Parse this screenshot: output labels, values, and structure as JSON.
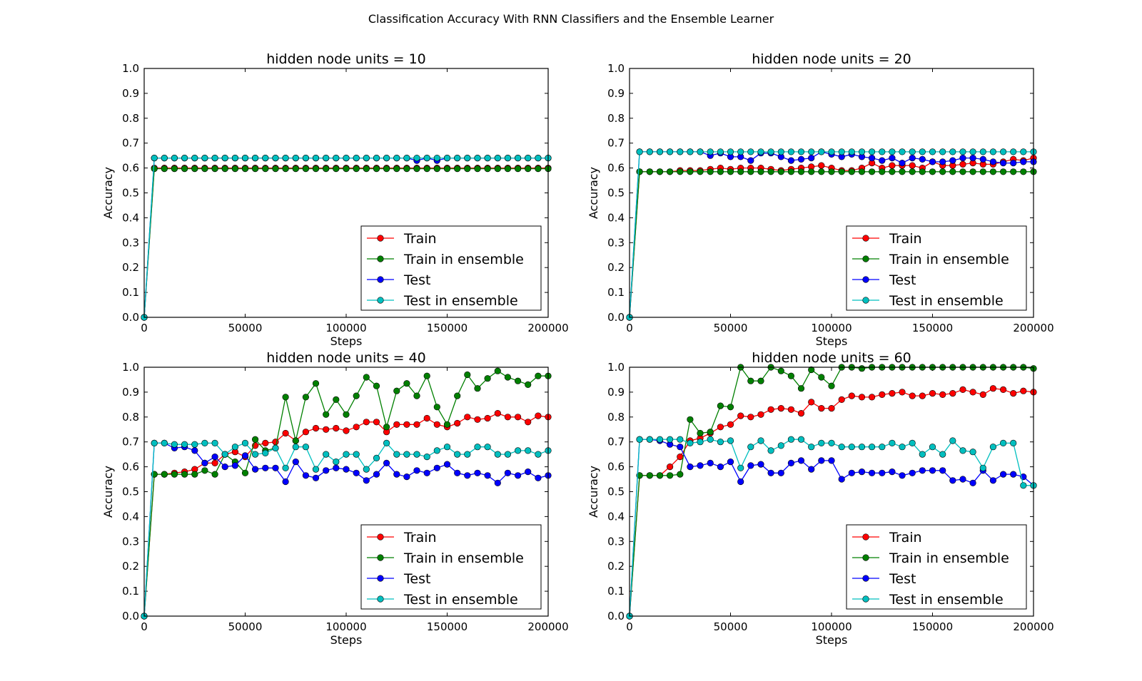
{
  "suptitle": "Classification Accuracy With RNN Classifiers and the Ensemble Learner",
  "chart_data": [
    {
      "type": "line",
      "title": "hidden node units = 10",
      "xlabel": "Steps",
      "ylabel": "Accuracy",
      "xlim": [
        0,
        200000
      ],
      "ylim": [
        0.0,
        1.0
      ],
      "x_ticks": [
        "0",
        "50000",
        "100000",
        "150000",
        "200000"
      ],
      "y_ticks": [
        "0.0",
        "0.1",
        "0.2",
        "0.3",
        "0.4",
        "0.5",
        "0.6",
        "0.7",
        "0.8",
        "0.9",
        "1.0"
      ],
      "legend_position": "lower right",
      "x_step": 5000,
      "series": [
        {
          "name": "Train",
          "color": "#ff0000",
          "values": [
            0,
            0.6,
            0.6,
            0.6,
            0.6,
            0.6,
            0.6,
            0.6,
            0.6,
            0.6,
            0.6,
            0.6,
            0.6,
            0.6,
            0.6,
            0.6,
            0.6,
            0.6,
            0.6,
            0.6,
            0.6,
            0.6,
            0.6,
            0.6,
            0.6,
            0.6,
            0.6,
            0.6,
            0.6,
            0.6,
            0.6,
            0.6,
            0.6,
            0.6,
            0.6,
            0.6,
            0.6,
            0.6,
            0.6,
            0.6,
            0.6
          ]
        },
        {
          "name": "Train in ensemble",
          "color": "#008000",
          "values": [
            0,
            0.597,
            0.597,
            0.597,
            0.597,
            0.597,
            0.597,
            0.597,
            0.597,
            0.597,
            0.597,
            0.597,
            0.597,
            0.597,
            0.597,
            0.597,
            0.597,
            0.597,
            0.597,
            0.597,
            0.597,
            0.597,
            0.597,
            0.597,
            0.597,
            0.597,
            0.597,
            0.597,
            0.597,
            0.597,
            0.597,
            0.597,
            0.597,
            0.597,
            0.597,
            0.597,
            0.597,
            0.597,
            0.597,
            0.597,
            0.597
          ]
        },
        {
          "name": "Test",
          "color": "#0000ff",
          "values": [
            0,
            0.64,
            0.64,
            0.64,
            0.64,
            0.64,
            0.64,
            0.64,
            0.64,
            0.64,
            0.64,
            0.64,
            0.64,
            0.64,
            0.64,
            0.64,
            0.64,
            0.64,
            0.64,
            0.64,
            0.64,
            0.64,
            0.64,
            0.64,
            0.64,
            0.64,
            0.64,
            0.63,
            0.64,
            0.63,
            0.64,
            0.64,
            0.64,
            0.64,
            0.64,
            0.64,
            0.64,
            0.64,
            0.64,
            0.64,
            0.64
          ]
        },
        {
          "name": "Test in ensemble",
          "color": "#00bfbf",
          "values": [
            0,
            0.64,
            0.64,
            0.64,
            0.64,
            0.64,
            0.64,
            0.64,
            0.64,
            0.64,
            0.64,
            0.64,
            0.64,
            0.64,
            0.64,
            0.64,
            0.64,
            0.64,
            0.64,
            0.64,
            0.64,
            0.64,
            0.64,
            0.64,
            0.64,
            0.64,
            0.64,
            0.64,
            0.64,
            0.64,
            0.64,
            0.64,
            0.64,
            0.64,
            0.64,
            0.64,
            0.64,
            0.64,
            0.64,
            0.64,
            0.64
          ]
        }
      ]
    },
    {
      "type": "line",
      "title": "hidden node units = 20",
      "xlabel": "Steps",
      "ylabel": "Accuracy",
      "xlim": [
        0,
        200000
      ],
      "ylim": [
        0.0,
        1.0
      ],
      "x_ticks": [
        "0",
        "50000",
        "100000",
        "150000",
        "200000"
      ],
      "y_ticks": [
        "0.0",
        "0.1",
        "0.2",
        "0.3",
        "0.4",
        "0.5",
        "0.6",
        "0.7",
        "0.8",
        "0.9",
        "1.0"
      ],
      "legend_position": "lower right",
      "x_step": 5000,
      "series": [
        {
          "name": "Train",
          "color": "#ff0000",
          "values": [
            0,
            0.585,
            0.585,
            0.585,
            0.585,
            0.59,
            0.59,
            0.59,
            0.595,
            0.6,
            0.595,
            0.6,
            0.6,
            0.6,
            0.595,
            0.59,
            0.595,
            0.6,
            0.605,
            0.61,
            0.6,
            0.59,
            0.59,
            0.6,
            0.62,
            0.6,
            0.61,
            0.61,
            0.61,
            0.6,
            0.625,
            0.61,
            0.61,
            0.615,
            0.62,
            0.615,
            0.615,
            0.625,
            0.635,
            0.63,
            0.64
          ]
        },
        {
          "name": "Train in ensemble",
          "color": "#008000",
          "values": [
            0,
            0.585,
            0.585,
            0.585,
            0.585,
            0.585,
            0.585,
            0.585,
            0.585,
            0.585,
            0.585,
            0.585,
            0.585,
            0.585,
            0.585,
            0.585,
            0.585,
            0.585,
            0.585,
            0.585,
            0.585,
            0.585,
            0.585,
            0.585,
            0.585,
            0.585,
            0.585,
            0.585,
            0.585,
            0.585,
            0.585,
            0.585,
            0.585,
            0.585,
            0.585,
            0.585,
            0.585,
            0.585,
            0.585,
            0.585,
            0.585
          ]
        },
        {
          "name": "Test",
          "color": "#0000ff",
          "values": [
            0,
            0.665,
            0.665,
            0.665,
            0.665,
            0.665,
            0.665,
            0.665,
            0.65,
            0.66,
            0.645,
            0.645,
            0.63,
            0.66,
            0.66,
            0.645,
            0.63,
            0.635,
            0.64,
            0.665,
            0.655,
            0.645,
            0.655,
            0.645,
            0.64,
            0.63,
            0.64,
            0.62,
            0.64,
            0.635,
            0.625,
            0.625,
            0.63,
            0.64,
            0.64,
            0.635,
            0.625,
            0.62,
            0.62,
            0.625,
            0.625
          ]
        },
        {
          "name": "Test in ensemble",
          "color": "#00bfbf",
          "values": [
            0,
            0.665,
            0.665,
            0.665,
            0.665,
            0.665,
            0.665,
            0.665,
            0.665,
            0.665,
            0.665,
            0.665,
            0.665,
            0.665,
            0.665,
            0.665,
            0.665,
            0.665,
            0.665,
            0.665,
            0.665,
            0.665,
            0.665,
            0.665,
            0.665,
            0.665,
            0.665,
            0.665,
            0.665,
            0.665,
            0.665,
            0.665,
            0.665,
            0.665,
            0.665,
            0.665,
            0.665,
            0.665,
            0.665,
            0.665,
            0.665
          ]
        }
      ]
    },
    {
      "type": "line",
      "title": "hidden node units = 40",
      "xlabel": "Steps",
      "ylabel": "Accuracy",
      "xlim": [
        0,
        200000
      ],
      "ylim": [
        0.0,
        1.0
      ],
      "x_ticks": [
        "0",
        "50000",
        "100000",
        "150000",
        "200000"
      ],
      "y_ticks": [
        "0.0",
        "0.1",
        "0.2",
        "0.3",
        "0.4",
        "0.5",
        "0.6",
        "0.7",
        "0.8",
        "0.9",
        "1.0"
      ],
      "legend_position": "lower right",
      "x_step": 5000,
      "series": [
        {
          "name": "Train",
          "color": "#ff0000",
          "values": [
            0,
            0.57,
            0.57,
            0.575,
            0.58,
            0.59,
            0.615,
            0.615,
            0.65,
            0.66,
            0.64,
            0.685,
            0.695,
            0.7,
            0.735,
            0.705,
            0.74,
            0.755,
            0.75,
            0.755,
            0.745,
            0.76,
            0.78,
            0.78,
            0.74,
            0.77,
            0.77,
            0.77,
            0.795,
            0.77,
            0.76,
            0.775,
            0.8,
            0.79,
            0.795,
            0.815,
            0.8,
            0.8,
            0.78,
            0.805,
            0.8
          ]
        },
        {
          "name": "Train in ensemble",
          "color": "#008000",
          "values": [
            0,
            0.57,
            0.57,
            0.57,
            0.57,
            0.57,
            0.585,
            0.57,
            0.65,
            0.62,
            0.575,
            0.71,
            0.665,
            0.675,
            0.88,
            0.705,
            0.88,
            0.935,
            0.81,
            0.87,
            0.81,
            0.885,
            0.96,
            0.925,
            0.76,
            0.905,
            0.935,
            0.885,
            0.965,
            0.84,
            0.77,
            0.885,
            0.97,
            0.915,
            0.955,
            0.985,
            0.96,
            0.945,
            0.93,
            0.965,
            0.965
          ]
        },
        {
          "name": "Test",
          "color": "#0000ff",
          "values": [
            0,
            0.695,
            0.695,
            0.675,
            0.68,
            0.665,
            0.615,
            0.64,
            0.6,
            0.605,
            0.645,
            0.59,
            0.595,
            0.595,
            0.54,
            0.62,
            0.565,
            0.555,
            0.585,
            0.595,
            0.59,
            0.575,
            0.545,
            0.57,
            0.615,
            0.57,
            0.56,
            0.585,
            0.575,
            0.595,
            0.61,
            0.575,
            0.565,
            0.575,
            0.565,
            0.535,
            0.575,
            0.565,
            0.58,
            0.555,
            0.565
          ]
        },
        {
          "name": "Test in ensemble",
          "color": "#00bfbf",
          "values": [
            0,
            0.695,
            0.695,
            0.69,
            0.69,
            0.69,
            0.695,
            0.695,
            0.65,
            0.68,
            0.695,
            0.65,
            0.655,
            0.675,
            0.595,
            0.68,
            0.68,
            0.59,
            0.65,
            0.62,
            0.65,
            0.65,
            0.59,
            0.635,
            0.695,
            0.65,
            0.65,
            0.65,
            0.64,
            0.665,
            0.68,
            0.65,
            0.65,
            0.68,
            0.68,
            0.65,
            0.65,
            0.665,
            0.665,
            0.65,
            0.665
          ]
        }
      ]
    },
    {
      "type": "line",
      "title": "hidden node units = 60",
      "xlabel": "Steps",
      "ylabel": "Accuracy",
      "xlim": [
        0,
        200000
      ],
      "ylim": [
        0.0,
        1.0
      ],
      "x_ticks": [
        "0",
        "50000",
        "100000",
        "150000",
        "200000"
      ],
      "y_ticks": [
        "0.0",
        "0.1",
        "0.2",
        "0.3",
        "0.4",
        "0.5",
        "0.6",
        "0.7",
        "0.8",
        "0.9",
        "1.0"
      ],
      "legend_position": "lower right",
      "x_step": 5000,
      "series": [
        {
          "name": "Train",
          "color": "#ff0000",
          "values": [
            0,
            0.565,
            0.565,
            0.565,
            0.6,
            0.64,
            0.705,
            0.715,
            0.735,
            0.76,
            0.77,
            0.805,
            0.8,
            0.81,
            0.83,
            0.835,
            0.83,
            0.815,
            0.86,
            0.835,
            0.835,
            0.87,
            0.885,
            0.88,
            0.88,
            0.89,
            0.895,
            0.9,
            0.885,
            0.885,
            0.895,
            0.89,
            0.895,
            0.91,
            0.9,
            0.89,
            0.915,
            0.91,
            0.895,
            0.905,
            0.9
          ]
        },
        {
          "name": "Train in ensemble",
          "color": "#008000",
          "values": [
            0,
            0.565,
            0.565,
            0.565,
            0.565,
            0.57,
            0.79,
            0.735,
            0.74,
            0.845,
            0.84,
            1.0,
            0.945,
            0.945,
            1.0,
            0.985,
            0.965,
            0.915,
            0.99,
            0.96,
            0.925,
            1.0,
            1.0,
            0.995,
            1.0,
            1.0,
            1.0,
            1.0,
            1.0,
            1.0,
            1.0,
            1.0,
            1.0,
            1.0,
            1.0,
            1.0,
            1.0,
            1.0,
            1.0,
            1.0,
            0.995
          ]
        },
        {
          "name": "Test",
          "color": "#0000ff",
          "values": [
            0,
            0.71,
            0.71,
            0.705,
            0.69,
            0.68,
            0.6,
            0.605,
            0.615,
            0.6,
            0.62,
            0.54,
            0.605,
            0.61,
            0.575,
            0.575,
            0.615,
            0.625,
            0.59,
            0.625,
            0.625,
            0.55,
            0.575,
            0.58,
            0.575,
            0.575,
            0.58,
            0.565,
            0.575,
            0.585,
            0.585,
            0.585,
            0.545,
            0.55,
            0.535,
            0.585,
            0.545,
            0.57,
            0.57,
            0.56,
            0.525
          ]
        },
        {
          "name": "Test in ensemble",
          "color": "#00bfbf",
          "values": [
            0,
            0.71,
            0.71,
            0.71,
            0.71,
            0.71,
            0.695,
            0.7,
            0.71,
            0.7,
            0.705,
            0.595,
            0.68,
            0.705,
            0.665,
            0.685,
            0.71,
            0.71,
            0.68,
            0.695,
            0.695,
            0.68,
            0.68,
            0.68,
            0.68,
            0.68,
            0.695,
            0.68,
            0.695,
            0.65,
            0.68,
            0.65,
            0.705,
            0.665,
            0.66,
            0.595,
            0.68,
            0.695,
            0.695,
            0.525,
            0.525
          ]
        }
      ]
    }
  ]
}
